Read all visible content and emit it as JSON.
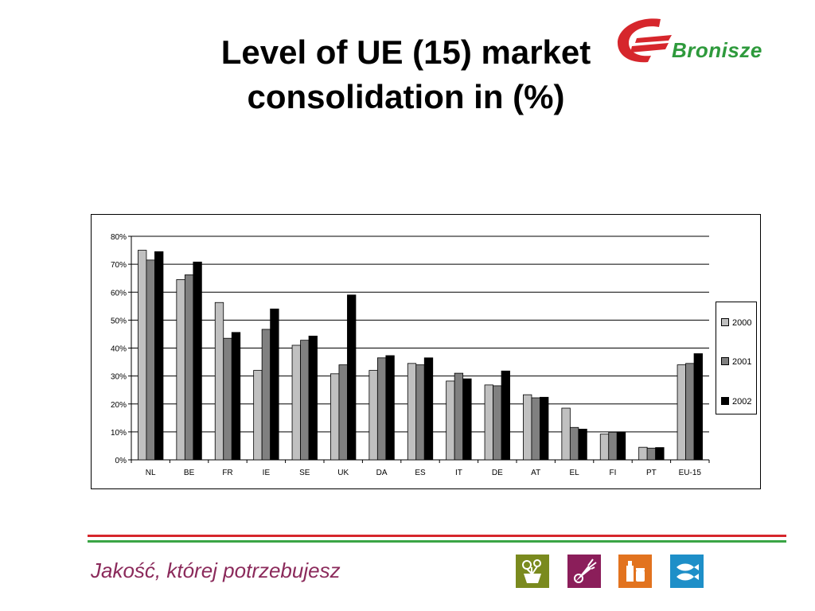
{
  "slide": {
    "title_line1": "Level of UE (15) market",
    "title_line2": "consolidation in (%)",
    "logo_text": "Bronisze",
    "tagline": "Jakość, której potrzebujesz"
  },
  "icons": [
    "flower-pot-icon",
    "carrot-icon",
    "bottle-jar-icon",
    "fish-icon"
  ],
  "colors": {
    "title": "#000000",
    "tagline": "#8b2a5b",
    "logo_red": "#d6262c",
    "logo_green": "#2e9a3c",
    "footer_red": "#d6262c",
    "footer_green": "#3aa545"
  },
  "chart_data": {
    "type": "bar",
    "title": "",
    "xlabel": "",
    "ylabel": "",
    "ylim": [
      0,
      0.8
    ],
    "yticks": [
      "0%",
      "10%",
      "20%",
      "30%",
      "40%",
      "50%",
      "60%",
      "70%",
      "80%"
    ],
    "grid": true,
    "legend_position": "right",
    "categories": [
      "NL",
      "BE",
      "FR",
      "IE",
      "SE",
      "UK",
      "DA",
      "ES",
      "IT",
      "DE",
      "AT",
      "EL",
      "FI",
      "PT",
      "EU-15"
    ],
    "series": [
      {
        "name": "2000",
        "color": "#c0c0c0",
        "values": [
          0.75,
          0.645,
          0.563,
          0.32,
          0.41,
          0.308,
          0.32,
          0.345,
          0.282,
          0.268,
          0.233,
          0.185,
          0.092,
          0.045,
          0.34
        ]
      },
      {
        "name": "2001",
        "color": "#808080",
        "values": [
          0.715,
          0.662,
          0.435,
          0.467,
          0.428,
          0.34,
          0.365,
          0.34,
          0.31,
          0.265,
          0.222,
          0.116,
          0.099,
          0.042,
          0.345
        ]
      },
      {
        "name": "2002",
        "color": "#000000",
        "values": [
          0.745,
          0.708,
          0.456,
          0.54,
          0.443,
          0.59,
          0.373,
          0.365,
          0.29,
          0.318,
          0.224,
          0.11,
          0.1,
          0.044,
          0.38
        ]
      }
    ]
  }
}
